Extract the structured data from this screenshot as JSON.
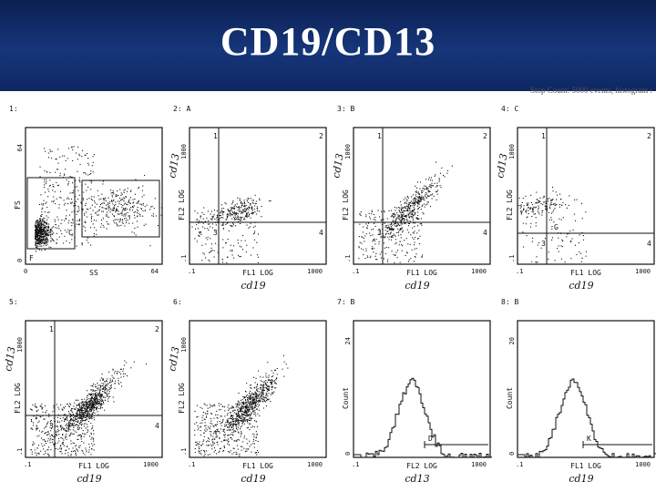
{
  "title": "CD19/CD13",
  "header_note": "Stop Count: 5000 events, histogram :",
  "colors": {
    "banner": "#16367a",
    "title": "#ffffff",
    "ink": "#111111"
  },
  "chart_data": [
    {
      "id": 1,
      "type": "scatter",
      "label": "1:",
      "xlabel": "SS",
      "ylabel": "FS",
      "x_ticks": [
        "0",
        "64"
      ],
      "y_ticks": [
        "0",
        "64"
      ],
      "gates": [
        "C",
        "F"
      ],
      "annotation": ""
    },
    {
      "id": 2,
      "type": "scatter",
      "label": "2: A",
      "xlabel": "FL1 LOG",
      "ylabel": "FL2 LOG",
      "x_ticks": [
        ".1",
        "1000"
      ],
      "y_ticks": [
        ".1",
        "1000"
      ],
      "quadrants": [
        "1",
        "2",
        "3",
        "4"
      ],
      "annotation": "cd13",
      "x_annotation": "cd19"
    },
    {
      "id": 3,
      "type": "scatter",
      "label": "3: B",
      "xlabel": "FL1 LOG",
      "ylabel": "FL2 LOG",
      "x_ticks": [
        ".1",
        "1000"
      ],
      "y_ticks": [
        ".1",
        "1000"
      ],
      "quadrants": [
        "1",
        "2",
        "3",
        "4"
      ],
      "annotation": "cd13",
      "x_annotation": "cd19"
    },
    {
      "id": 4,
      "type": "scatter",
      "label": "4: C",
      "xlabel": "FL1 LOG",
      "ylabel": "FL2 LOG",
      "x_ticks": [
        ".1",
        "1000"
      ],
      "y_ticks": [
        ".1",
        "1000"
      ],
      "quadrants": [
        "1",
        "2",
        "3",
        "4"
      ],
      "gates": [
        "G"
      ],
      "annotation": "cd13",
      "x_annotation": "cd19"
    },
    {
      "id": 5,
      "type": "scatter",
      "label": "5:",
      "xlabel": "FL1 LOG",
      "ylabel": "FL2 LOG",
      "x_ticks": [
        ".1",
        "1000"
      ],
      "y_ticks": [
        ".1",
        "1000"
      ],
      "quadrants": [
        "1",
        "2",
        "3",
        "4"
      ],
      "annotation": "cd13",
      "x_annotation": "cd19"
    },
    {
      "id": 6,
      "type": "scatter",
      "label": "6:",
      "xlabel": "FL1 LOG",
      "ylabel": "FL2 LOG",
      "x_ticks": [
        ".1",
        "1000"
      ],
      "y_ticks": [
        ".1",
        "1000"
      ],
      "annotation": "cd13",
      "x_annotation": "cd19"
    },
    {
      "id": 7,
      "type": "histogram",
      "label": "7: B",
      "xlabel": "FL2 LOG",
      "ylabel": "Count",
      "x_ticks": [
        ".1",
        "1000"
      ],
      "y_ticks": [
        "0",
        "24"
      ],
      "gates": [
        "D"
      ],
      "x_annotation": "cd13"
    },
    {
      "id": 8,
      "type": "histogram",
      "label": "8: B",
      "xlabel": "FL1 LOG",
      "ylabel": "Count",
      "x_ticks": [
        ".1",
        "1000"
      ],
      "y_ticks": [
        "0",
        "20"
      ],
      "gates": [
        "K"
      ],
      "x_annotation": "cd19"
    }
  ]
}
